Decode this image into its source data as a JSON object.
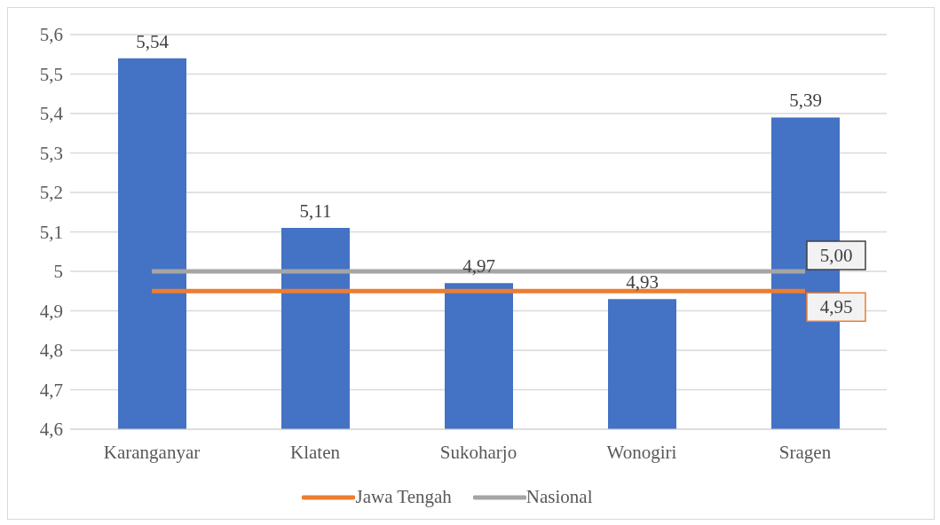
{
  "chart_data": {
    "type": "bar",
    "categories": [
      "Karanganyar",
      "Klaten",
      "Sukoharjo",
      "Wonogiri",
      "Sragen"
    ],
    "series": [
      {
        "color": "#4472c4",
        "values": [
          5.54,
          5.11,
          4.97,
          4.93,
          5.39
        ],
        "value_labels": [
          "5,54",
          "5,11",
          "4,97",
          "4,93",
          "5,39"
        ]
      },
      {
        "type": "line",
        "name": "Jawa Tengah",
        "color": "#ed7d31",
        "values": [
          4.95,
          4.95,
          4.95,
          4.95,
          4.95
        ],
        "value_labels": [
          null,
          null,
          null,
          null,
          "4,95"
        ]
      },
      {
        "type": "line",
        "name": "Nasional",
        "color": "#a5a5a5",
        "values": [
          5.0,
          5.0,
          5.0,
          5.0,
          5.0
        ],
        "value_labels": [
          null,
          null,
          null,
          null,
          "5,00"
        ]
      }
    ],
    "ylim": [
      4.6,
      5.6
    ],
    "yticks": [
      {
        "value": 4.6,
        "label": "4,6"
      },
      {
        "value": 4.7,
        "label": "4,7"
      },
      {
        "value": 4.8,
        "label": "4,8"
      },
      {
        "value": 4.9,
        "label": "4,9"
      },
      {
        "value": 5,
        "label": "5"
      },
      {
        "value": 5.1,
        "label": "5,1"
      },
      {
        "value": 5.2,
        "label": "5,2"
      },
      {
        "value": 5.3,
        "label": "5,3"
      },
      {
        "value": 5.4,
        "label": "5,4"
      },
      {
        "value": 5.5,
        "label": "5,5"
      },
      {
        "value": 5.6,
        "label": "5,6"
      }
    ],
    "grid": "y",
    "legend": "bottom",
    "marker": "none"
  }
}
